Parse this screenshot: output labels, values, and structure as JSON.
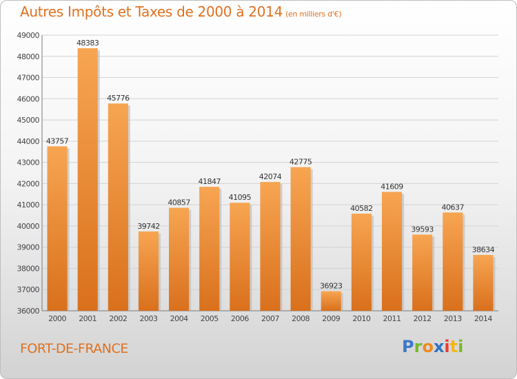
{
  "title": "Autres Impôts et Taxes de 2000 à 2014",
  "subtitle": "(en milliers d'€)",
  "city": "FORT-DE-FRANCE",
  "logo": {
    "p": "P",
    "r": "r",
    "o": "o",
    "x": "x",
    "i1": "i",
    "t": "t",
    "i2": "i"
  },
  "colors": {
    "bar_light": "#f7a552",
    "bar_dark": "#d9701c",
    "title": "#e0701f"
  },
  "chart_data": {
    "type": "bar",
    "title": "Autres Impôts et Taxes de 2000 à 2014",
    "subtitle": "(en milliers d'€)",
    "xlabel": "",
    "ylabel": "",
    "categories": [
      "2000",
      "2001",
      "2002",
      "2003",
      "2004",
      "2005",
      "2006",
      "2007",
      "2008",
      "2009",
      "2010",
      "2011",
      "2012",
      "2013",
      "2014"
    ],
    "values": [
      43757,
      48383,
      45776,
      39742,
      40857,
      41847,
      41095,
      42074,
      42775,
      36923,
      40582,
      41609,
      39593,
      40637,
      38634
    ],
    "ylim": [
      36000,
      49000
    ],
    "yticks": [
      36000,
      37000,
      38000,
      39000,
      40000,
      41000,
      42000,
      43000,
      44000,
      45000,
      46000,
      47000,
      48000,
      49000
    ],
    "grid": true,
    "legend": "none"
  }
}
